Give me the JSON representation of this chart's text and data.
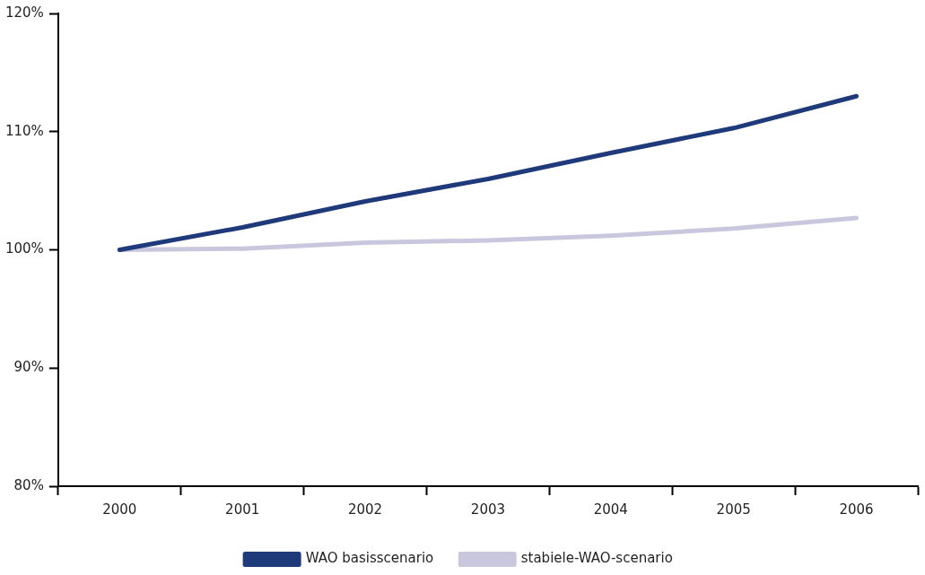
{
  "chart_data": {
    "type": "line",
    "categories": [
      "2000",
      "2001",
      "2002",
      "2003",
      "2004",
      "2005",
      "2006"
    ],
    "series": [
      {
        "name": "WAO basisscenario",
        "color": "#1f3a7a",
        "values": [
          100,
          101.9,
          104.1,
          106.0,
          108.2,
          110.3,
          113.0
        ]
      },
      {
        "name": "stabiele-WAO-scenario",
        "color": "#c9c7de",
        "values": [
          100,
          100.1,
          100.6,
          100.8,
          101.2,
          101.8,
          102.7
        ]
      }
    ],
    "ylim": [
      80,
      120
    ],
    "yticks": [
      {
        "value": 80,
        "label": "80%"
      },
      {
        "value": 90,
        "label": "90%"
      },
      {
        "value": 100,
        "label": "100%"
      },
      {
        "value": 110,
        "label": "110%"
      },
      {
        "value": 120,
        "label": "120%"
      }
    ],
    "grid": false,
    "legend": "bottom",
    "marker": "none",
    "line_style": "solid"
  }
}
